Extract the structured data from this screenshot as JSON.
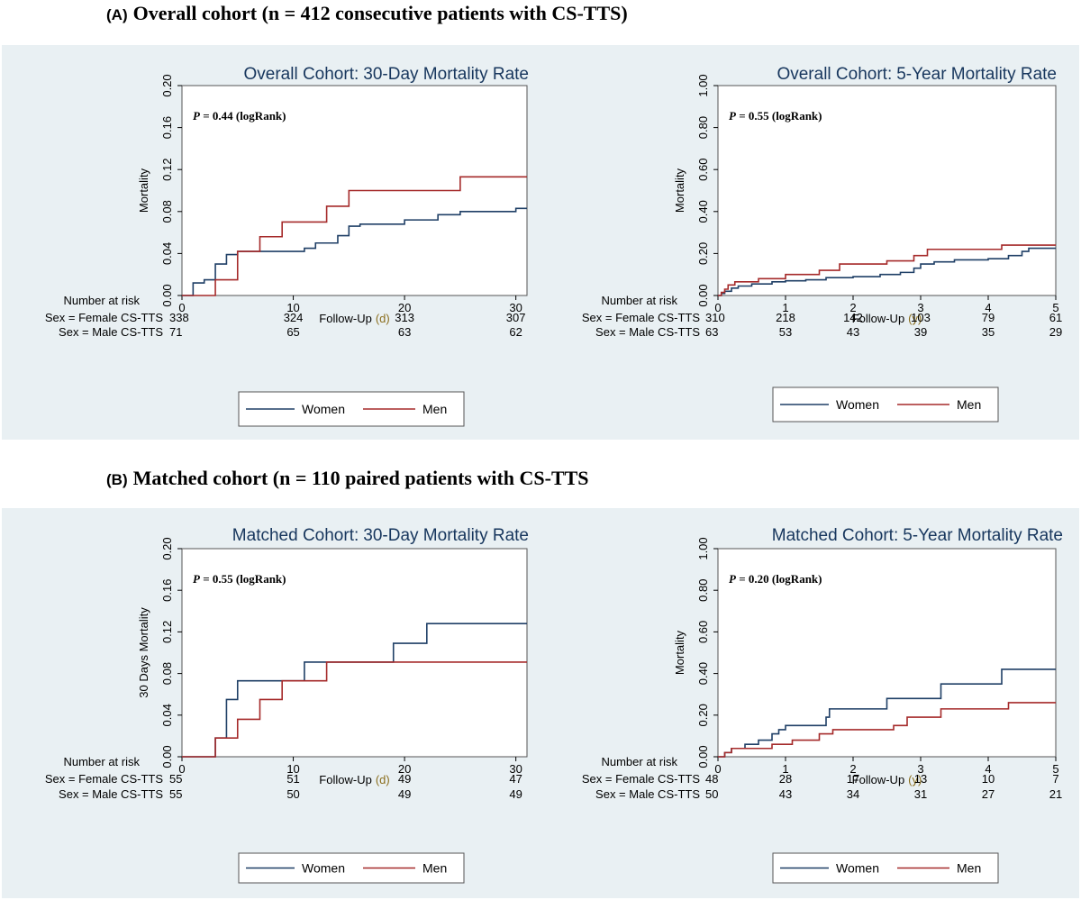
{
  "sections": [
    {
      "tag": "(A)",
      "title": "Overall cohort (n = 412 consecutive patients with CS-TTS)"
    },
    {
      "tag": "(B)",
      "title": "Matched cohort (n = 110 paired patients with CS-TTS"
    }
  ],
  "colors": {
    "women": "#1f3f66",
    "men": "#a52a2a",
    "title": "#17365d",
    "panel": "#e9f0f3"
  },
  "legend": {
    "women": "Women",
    "men": "Men"
  },
  "risk_header": "Number at risk",
  "chart_data": [
    {
      "type": "line",
      "subtype": "kaplan-meier-failure",
      "title": "Overall Cohort: 30-Day Mortality Rate",
      "title_prefix": "Overall Cohort:",
      "title_suffix": "30-Day Mortality Rate",
      "xlabel": "Follow-Up (d)",
      "xlabel_main": "Follow-Up",
      "xlabel_unit": "(d)",
      "ylabel": "Mortality",
      "xlim": [
        0,
        31
      ],
      "ylim": [
        0,
        0.2
      ],
      "xticks": [
        0,
        10,
        20,
        30
      ],
      "yticks": [
        "0.00",
        "0.04",
        "0.08",
        "0.12",
        "0.16",
        "0.20"
      ],
      "pvalue": {
        "label": "P",
        "text": " = 0.44 (logRank)"
      },
      "series": [
        {
          "name": "Women",
          "x": [
            0,
            1,
            2,
            3,
            4,
            5,
            11,
            12,
            14,
            15,
            16,
            18,
            20,
            21,
            23,
            25,
            26,
            28,
            30,
            31
          ],
          "y": [
            0,
            0.012,
            0.015,
            0.03,
            0.039,
            0.042,
            0.045,
            0.05,
            0.057,
            0.066,
            0.068,
            0.068,
            0.072,
            0.072,
            0.077,
            0.08,
            0.08,
            0.08,
            0.083,
            0.083
          ]
        },
        {
          "name": "Men",
          "x": [
            0,
            3,
            5,
            7,
            9,
            13,
            15,
            25,
            31
          ],
          "y": [
            0,
            0.015,
            0.042,
            0.056,
            0.07,
            0.085,
            0.1,
            0.113,
            0.113
          ]
        }
      ],
      "risk_labels": [
        "Sex = Female CS-TTS",
        "Sex = Male CS-TTS"
      ],
      "risk_x": [
        0,
        10,
        20,
        30
      ],
      "risk_values": [
        [
          "338",
          "324",
          "313",
          "307"
        ],
        [
          "71",
          "65",
          "63",
          "62"
        ]
      ]
    },
    {
      "type": "line",
      "subtype": "kaplan-meier-failure",
      "title": "Overall Cohort: 5-Year Mortality Rate",
      "title_prefix": "Overall Cohort:",
      "title_suffix": "5-Year Mortality Rate",
      "xlabel": "Follow-Up (y)",
      "xlabel_main": "Follow-Up",
      "xlabel_unit": "(y)",
      "ylabel": "Mortality",
      "xlim": [
        0,
        5
      ],
      "ylim": [
        0,
        1
      ],
      "xticks": [
        0,
        1,
        2,
        3,
        4,
        5
      ],
      "yticks": [
        "0.00",
        "0.20",
        "0.40",
        "0.60",
        "0.80",
        "1.00"
      ],
      "pvalue": {
        "label": "P",
        "text": " = 0.55 (logRank)"
      },
      "series": [
        {
          "name": "Women",
          "x": [
            0,
            0.05,
            0.1,
            0.2,
            0.3,
            0.5,
            0.8,
            1.0,
            1.3,
            1.6,
            2.0,
            2.4,
            2.7,
            2.9,
            3.0,
            3.2,
            3.5,
            4.0,
            4.3,
            4.5,
            4.6,
            5.0
          ],
          "y": [
            0,
            0.01,
            0.02,
            0.035,
            0.045,
            0.055,
            0.065,
            0.07,
            0.075,
            0.085,
            0.09,
            0.1,
            0.11,
            0.13,
            0.15,
            0.16,
            0.17,
            0.175,
            0.19,
            0.21,
            0.225,
            0.225
          ]
        },
        {
          "name": "Men",
          "x": [
            0,
            0.05,
            0.1,
            0.15,
            0.25,
            0.6,
            1.0,
            1.5,
            1.8,
            2.5,
            2.9,
            3.1,
            4.2,
            5.0
          ],
          "y": [
            0,
            0.015,
            0.03,
            0.05,
            0.065,
            0.08,
            0.1,
            0.12,
            0.15,
            0.165,
            0.19,
            0.22,
            0.24,
            0.24
          ]
        }
      ],
      "risk_labels": [
        "Sex = Female CS-TTS",
        "Sex = Male CS-TTS"
      ],
      "risk_x": [
        0,
        1,
        2,
        3,
        4,
        5
      ],
      "risk_values": [
        [
          "310",
          "218",
          "142",
          "103",
          "79",
          "61"
        ],
        [
          "63",
          "53",
          "43",
          "39",
          "35",
          "29"
        ]
      ]
    },
    {
      "type": "line",
      "subtype": "kaplan-meier-failure",
      "title": "Matched Cohort: 30-Day Mortality Rate",
      "title_prefix": "Matched Cohort:",
      "title_suffix": "30-Day Mortality Rate",
      "xlabel": "Follow-Up (d)",
      "xlabel_main": "Follow-Up",
      "xlabel_unit": "(d)",
      "ylabel": "30 Days Mortality",
      "xlim": [
        0,
        31
      ],
      "ylim": [
        0,
        0.2
      ],
      "xticks": [
        0,
        10,
        20,
        30
      ],
      "yticks": [
        "0.00",
        "0.04",
        "0.08",
        "0.12",
        "0.16",
        "0.20"
      ],
      "pvalue": {
        "label": "P",
        "text": " = 0.55 (logRank)"
      },
      "series": [
        {
          "name": "Women",
          "x": [
            0,
            3,
            4,
            5,
            11,
            19,
            22,
            31
          ],
          "y": [
            0,
            0.018,
            0.055,
            0.073,
            0.091,
            0.109,
            0.128,
            0.128
          ]
        },
        {
          "name": "Men",
          "x": [
            0,
            3,
            5,
            7,
            9,
            13,
            31
          ],
          "y": [
            0,
            0.018,
            0.036,
            0.055,
            0.073,
            0.091,
            0.091
          ]
        }
      ],
      "risk_labels": [
        "Sex = Female CS-TTS",
        "Sex = Male CS-TTS"
      ],
      "risk_x": [
        0,
        10,
        20,
        30
      ],
      "risk_values": [
        [
          "55",
          "51",
          "49",
          "47"
        ],
        [
          "55",
          "50",
          "49",
          "49"
        ]
      ]
    },
    {
      "type": "line",
      "subtype": "kaplan-meier-failure",
      "title": "Matched Cohort: 5-Year Mortality Rate",
      "title_prefix": "Matched Cohort:",
      "title_suffix": "5-Year Mortality Rate",
      "xlabel": "Follow-Up (y)",
      "xlabel_main": "Follow-Up",
      "xlabel_unit": "(y)",
      "ylabel": "Mortality",
      "xlim": [
        0,
        5
      ],
      "ylim": [
        0,
        1
      ],
      "xticks": [
        0,
        1,
        2,
        3,
        4,
        5
      ],
      "yticks": [
        "0.00",
        "0.20",
        "0.40",
        "0.60",
        "0.80",
        "1.00"
      ],
      "pvalue": {
        "label": "P",
        "text": " = 0.20 (logRank)"
      },
      "series": [
        {
          "name": "Women",
          "x": [
            0,
            0.1,
            0.2,
            0.4,
            0.6,
            0.8,
            0.9,
            1.0,
            1.6,
            1.65,
            2.5,
            3.3,
            4.2,
            5.0
          ],
          "y": [
            0,
            0.02,
            0.04,
            0.06,
            0.08,
            0.11,
            0.13,
            0.15,
            0.19,
            0.23,
            0.28,
            0.35,
            0.42,
            0.42
          ]
        },
        {
          "name": "Men",
          "x": [
            0,
            0.1,
            0.2,
            0.8,
            1.1,
            1.5,
            1.7,
            2.6,
            2.8,
            3.3,
            4.3,
            5.0
          ],
          "y": [
            0,
            0.02,
            0.04,
            0.06,
            0.08,
            0.11,
            0.13,
            0.15,
            0.19,
            0.23,
            0.26,
            0.26
          ]
        }
      ],
      "risk_labels": [
        "Sex = Female CS-TTS",
        "Sex = Male CS-TTS"
      ],
      "risk_x": [
        0,
        1,
        2,
        3,
        4,
        5
      ],
      "risk_values": [
        [
          "48",
          "28",
          "17",
          "13",
          "10",
          "7"
        ],
        [
          "50",
          "43",
          "34",
          "31",
          "27",
          "21"
        ]
      ]
    }
  ]
}
